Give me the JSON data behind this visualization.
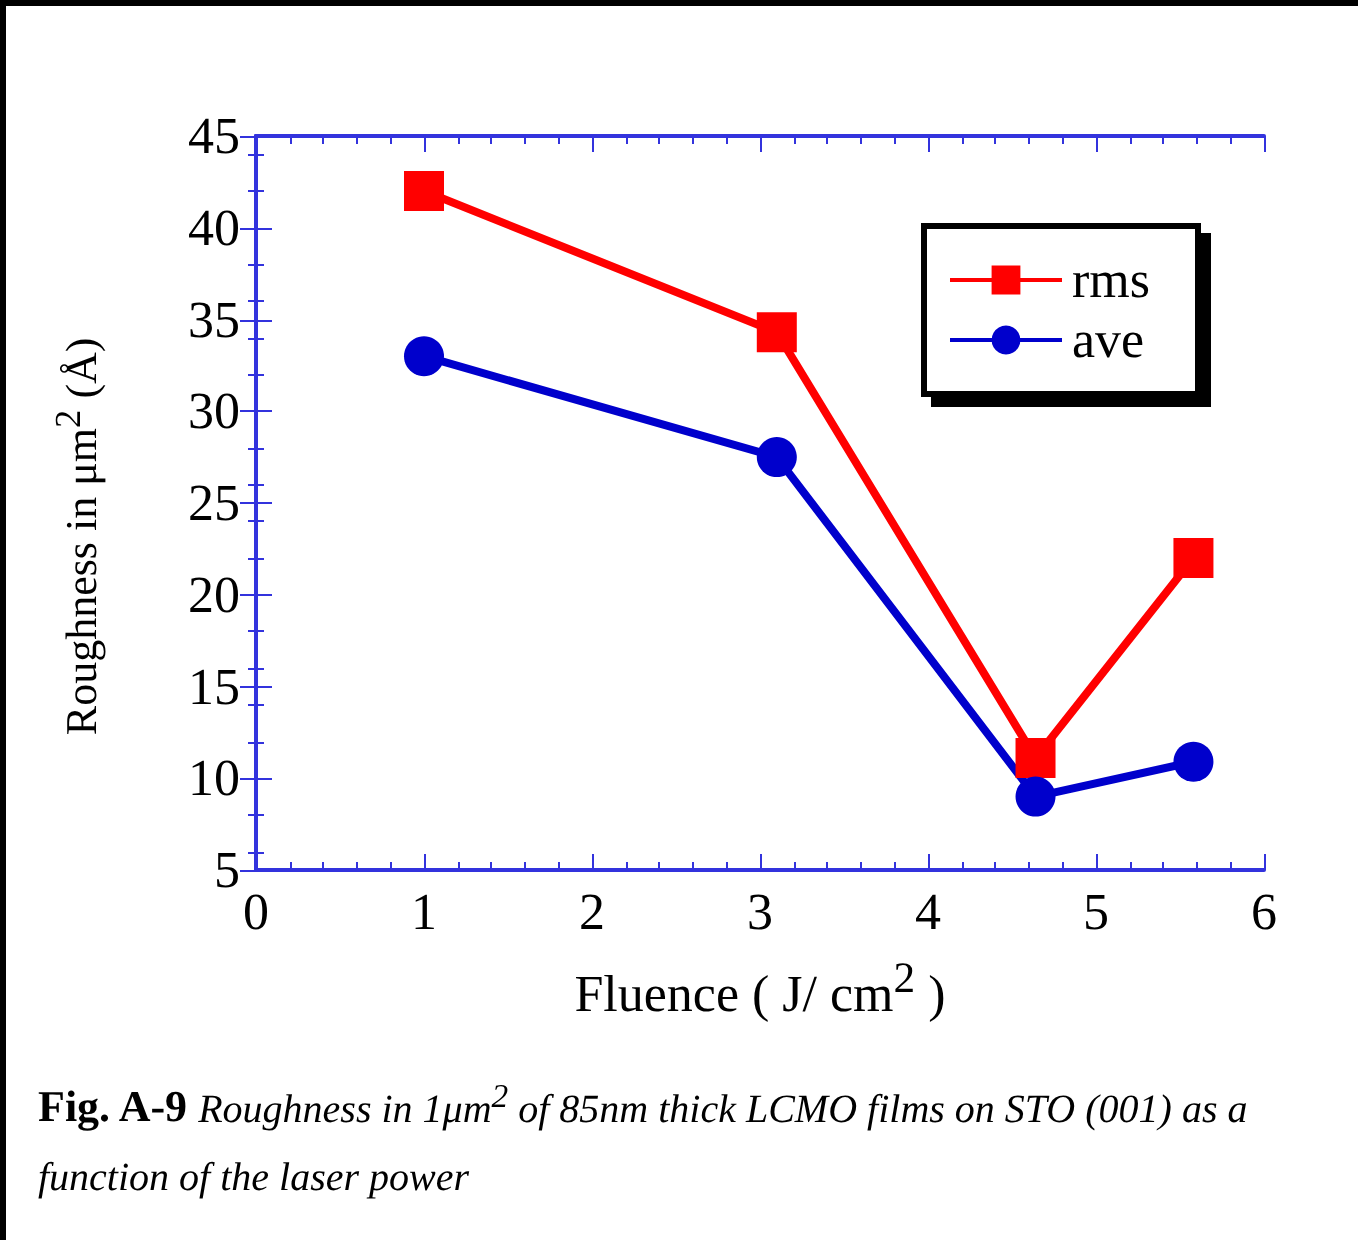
{
  "chart_data": {
    "type": "line",
    "xlabel": "Fluence ( J/ cm$^{2}$ )",
    "ylabel": "Roughness in μm$^{2}$ (Å)",
    "x": [
      1,
      3.1,
      4.64,
      5.58
    ],
    "series": [
      {
        "name": "rms",
        "color": "#ff0000",
        "marker": "square",
        "values": [
          42,
          34.3,
          11.1,
          22
        ]
      },
      {
        "name": "ave",
        "color": "#0000cc",
        "marker": "circle",
        "values": [
          33,
          27.5,
          9,
          10.9
        ]
      }
    ],
    "xlim": [
      0,
      6
    ],
    "xticks": [
      0,
      1,
      2,
      3,
      4,
      5,
      6
    ],
    "ylim": [
      5,
      45
    ],
    "yticks": [
      5,
      10,
      15,
      20,
      25,
      30,
      35,
      40,
      45
    ],
    "grid": false,
    "legend": "top right",
    "line_style": "solid",
    "annotations": [
      "Fig. A-9",
      "Roughness in 1μm$^{2}$ of 85nm thick LCMO films on STO (001) as a function of the laser power"
    ]
  }
}
